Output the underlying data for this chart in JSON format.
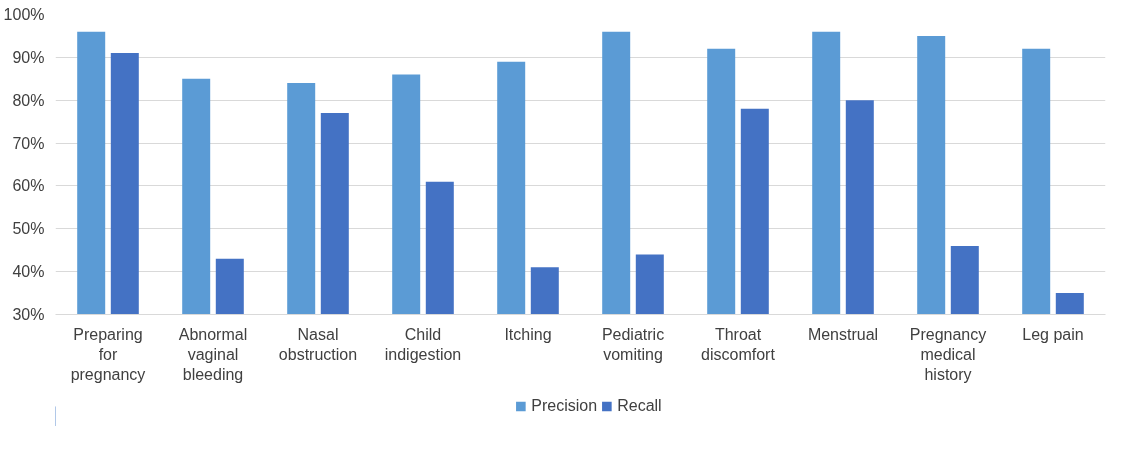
{
  "chart_data": {
    "type": "bar",
    "categories": [
      "Preparing for pregnancy",
      "Abnormal vaginal bleeding",
      "Nasal obstruction",
      "Child indigestion",
      "Itching",
      "Pediatric vomiting",
      "Throat discomfort",
      "Menstrual",
      "Pregnancy medical history",
      "Leg pain"
    ],
    "series": [
      {
        "name": "Precision",
        "color": "#5b9bd5",
        "values": [
          96,
          85,
          84,
          86,
          89,
          96,
          92,
          96,
          95,
          92
        ]
      },
      {
        "name": "Recall",
        "color": "#4472c4",
        "values": [
          91,
          43,
          77,
          61,
          41,
          44,
          78,
          80,
          46,
          35
        ]
      }
    ],
    "ylim": [
      30,
      100
    ],
    "yticks": [
      {
        "value": 30,
        "label": "30%"
      },
      {
        "value": 40,
        "label": "40%"
      },
      {
        "value": 50,
        "label": "50%"
      },
      {
        "value": 60,
        "label": "60%"
      },
      {
        "value": 70,
        "label": "70%"
      },
      {
        "value": 80,
        "label": "80%"
      },
      {
        "value": 90,
        "label": "90%"
      },
      {
        "value": 100,
        "label": "100%"
      }
    ],
    "grid": "y",
    "legend": "bottom"
  }
}
